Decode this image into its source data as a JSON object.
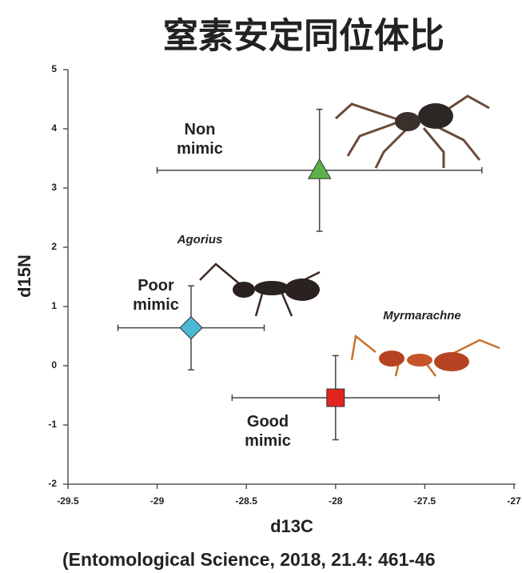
{
  "chart_data": {
    "type": "scatter",
    "title": "窒素安定同位体比",
    "x_label": "d13C",
    "y_label": "d15N",
    "xlim": [
      -29.5,
      -27
    ],
    "xticks": [
      -29.5,
      -29,
      -28.5,
      -28,
      -27.5,
      -27
    ],
    "ylim": [
      -2,
      5
    ],
    "yticks": [
      -2,
      -1,
      0,
      1,
      2,
      3,
      4,
      5
    ],
    "series": [
      {
        "name": "Non mimic",
        "color": "#5cb246",
        "marker": "triangle",
        "x": -28.09,
        "y": 3.3,
        "xerr": 0.91,
        "yerr": 1.03
      },
      {
        "name": "Poor mimic",
        "color": "#4cb8d4",
        "marker": "diamond",
        "x": -28.81,
        "y": 0.64,
        "xerr": 0.41,
        "yerr": 0.71
      },
      {
        "name": "Good mimic",
        "color": "#e3231f",
        "marker": "square",
        "x": -28.0,
        "y": -0.54,
        "xerr": 0.58,
        "yerr": 0.71
      }
    ],
    "annotations": [
      "Agorius",
      "Myrmarachne"
    ],
    "source": "(Entomological Science, 2018, 21.4: 461-46"
  }
}
